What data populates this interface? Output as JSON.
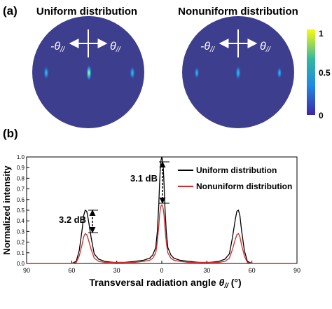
{
  "panel_a": {
    "label": "(a)",
    "left_title": "Uniform distribution",
    "right_title": "Nonuniform distribution",
    "arrow_left_label": "-θ",
    "arrow_right_label": "θ",
    "arrow_subscript": "//",
    "colorbar": {
      "ticks": [
        "1",
        "0.5",
        "0"
      ],
      "colors": [
        "#f9fb0e",
        "#33b7a0",
        "#1d8ce2",
        "#3e26a8"
      ]
    },
    "disk_color": "#3e3e8e"
  },
  "panel_b": {
    "label": "(b)",
    "annotation_center": "3.1 dB",
    "annotation_side": "3.2 dB"
  },
  "chart_data": {
    "type": "line",
    "xlabel": "Transversal radiation angle θ// (°)",
    "ylabel": "Normalized intensity",
    "xlim": [
      -90,
      90
    ],
    "ylim": [
      0,
      1.0
    ],
    "x_tick_labels": [
      "90",
      "60",
      "30",
      "0",
      "30",
      "60",
      "90"
    ],
    "x_tick_values": [
      -90,
      -60,
      -30,
      0,
      30,
      60,
      90
    ],
    "y_tick_values": [
      0,
      0.1,
      0.2,
      0.3,
      0.4,
      0.5,
      0.6,
      0.7,
      0.8,
      0.9,
      1.0
    ],
    "y_tick_labels": [
      "0.0",
      "0.1",
      "0.2",
      "0.3",
      "0.4",
      "0.5",
      "0.6",
      "0.7",
      "0.8",
      "0.9",
      "1.0"
    ],
    "grid": false,
    "legend_position": "top-right",
    "series": [
      {
        "name": "Uniform distribution",
        "color": "#000000",
        "x": [
          -90,
          -60,
          -57,
          -55,
          -53,
          -52,
          -51,
          -50,
          -49,
          -47,
          -45,
          -42,
          -38,
          -32,
          -25,
          -18,
          -12,
          -8,
          -6,
          -4,
          -3,
          -2,
          -1.5,
          -1,
          -0.5,
          0,
          0.5,
          1,
          1.5,
          2,
          3,
          4,
          6,
          8,
          12,
          18,
          25,
          32,
          38,
          42,
          45,
          47,
          49,
          50,
          51,
          52,
          53,
          55,
          57,
          60,
          90
        ],
        "y": [
          0,
          0,
          0.02,
          0.12,
          0.32,
          0.45,
          0.5,
          0.49,
          0.42,
          0.24,
          0.09,
          0.04,
          0.02,
          0.01,
          0.01,
          0.02,
          0.03,
          0.05,
          0.08,
          0.15,
          0.3,
          0.55,
          0.75,
          0.9,
          0.97,
          1.0,
          0.97,
          0.9,
          0.75,
          0.55,
          0.3,
          0.15,
          0.08,
          0.05,
          0.03,
          0.02,
          0.01,
          0.01,
          0.02,
          0.04,
          0.09,
          0.24,
          0.42,
          0.49,
          0.5,
          0.45,
          0.32,
          0.12,
          0.02,
          0,
          0
        ]
      },
      {
        "name": "Nonuniform distribution",
        "color": "#d12a2a",
        "x": [
          -90,
          -60,
          -57,
          -55,
          -53,
          -52,
          -51,
          -50,
          -49,
          -47,
          -45,
          -42,
          -38,
          -32,
          -25,
          -18,
          -12,
          -8,
          -6,
          -4,
          -3,
          -2,
          -1.5,
          -1,
          -0.5,
          0,
          0.5,
          1,
          1.5,
          2,
          3,
          4,
          6,
          8,
          12,
          18,
          25,
          32,
          38,
          42,
          45,
          47,
          49,
          50,
          51,
          52,
          53,
          55,
          57,
          60,
          90
        ],
        "y": [
          0,
          0,
          0.01,
          0.07,
          0.18,
          0.25,
          0.28,
          0.27,
          0.23,
          0.13,
          0.05,
          0.02,
          0.01,
          0.01,
          0.01,
          0.01,
          0.02,
          0.03,
          0.05,
          0.1,
          0.2,
          0.35,
          0.45,
          0.51,
          0.54,
          0.55,
          0.54,
          0.51,
          0.45,
          0.35,
          0.2,
          0.1,
          0.05,
          0.03,
          0.02,
          0.01,
          0.01,
          0.01,
          0.01,
          0.02,
          0.05,
          0.13,
          0.23,
          0.27,
          0.28,
          0.25,
          0.18,
          0.07,
          0.01,
          0,
          0
        ]
      }
    ]
  }
}
